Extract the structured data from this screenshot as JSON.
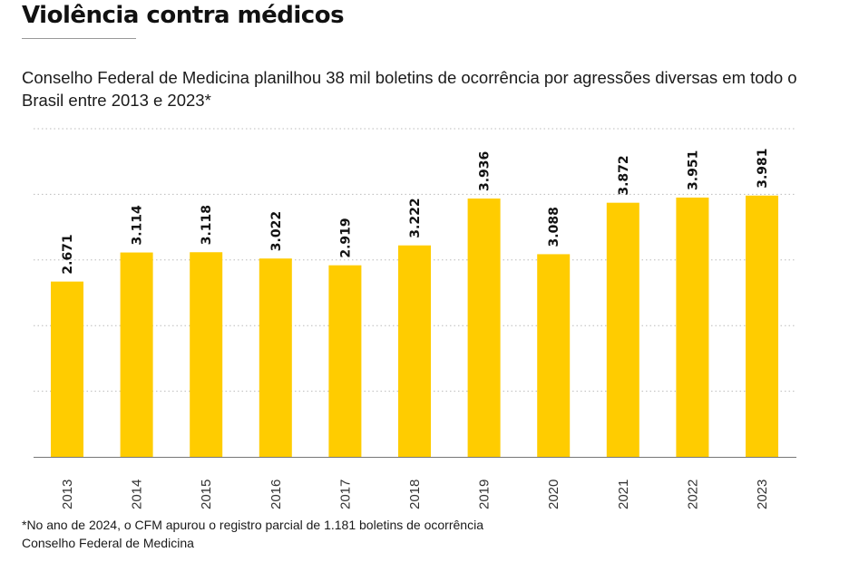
{
  "header": {
    "title": "Violência contra médicos",
    "subtitle": "Conselho Federal de Medicina planilhou 38 mil boletins de ocorrência por agressões diversas em todo o Brasil entre 2013 e 2023*"
  },
  "footer": {
    "note": "*No ano de 2024, o CFM apurou o registro parcial de 1.181 boletins de ocorrência",
    "source": "Conselho Federal de Medicina"
  },
  "colors": {
    "bar": "#FFCC00",
    "grid": "#bbbbbb",
    "axis": "#777777"
  },
  "chart_data": {
    "type": "bar",
    "categories": [
      "2013",
      "2014",
      "2015",
      "2016",
      "2017",
      "2018",
      "2019",
      "2020",
      "2021",
      "2022",
      "2023"
    ],
    "values": [
      2671,
      3114,
      3118,
      3022,
      2919,
      3222,
      3936,
      3088,
      3872,
      3951,
      3981
    ],
    "value_labels": [
      "2.671",
      "3.114",
      "3.118",
      "3.022",
      "2.919",
      "3.222",
      "3.936",
      "3.088",
      "3.872",
      "3.951",
      "3.981"
    ],
    "ylim": [
      0,
      5000
    ],
    "grid": true,
    "xlabel": "",
    "ylabel": ""
  }
}
